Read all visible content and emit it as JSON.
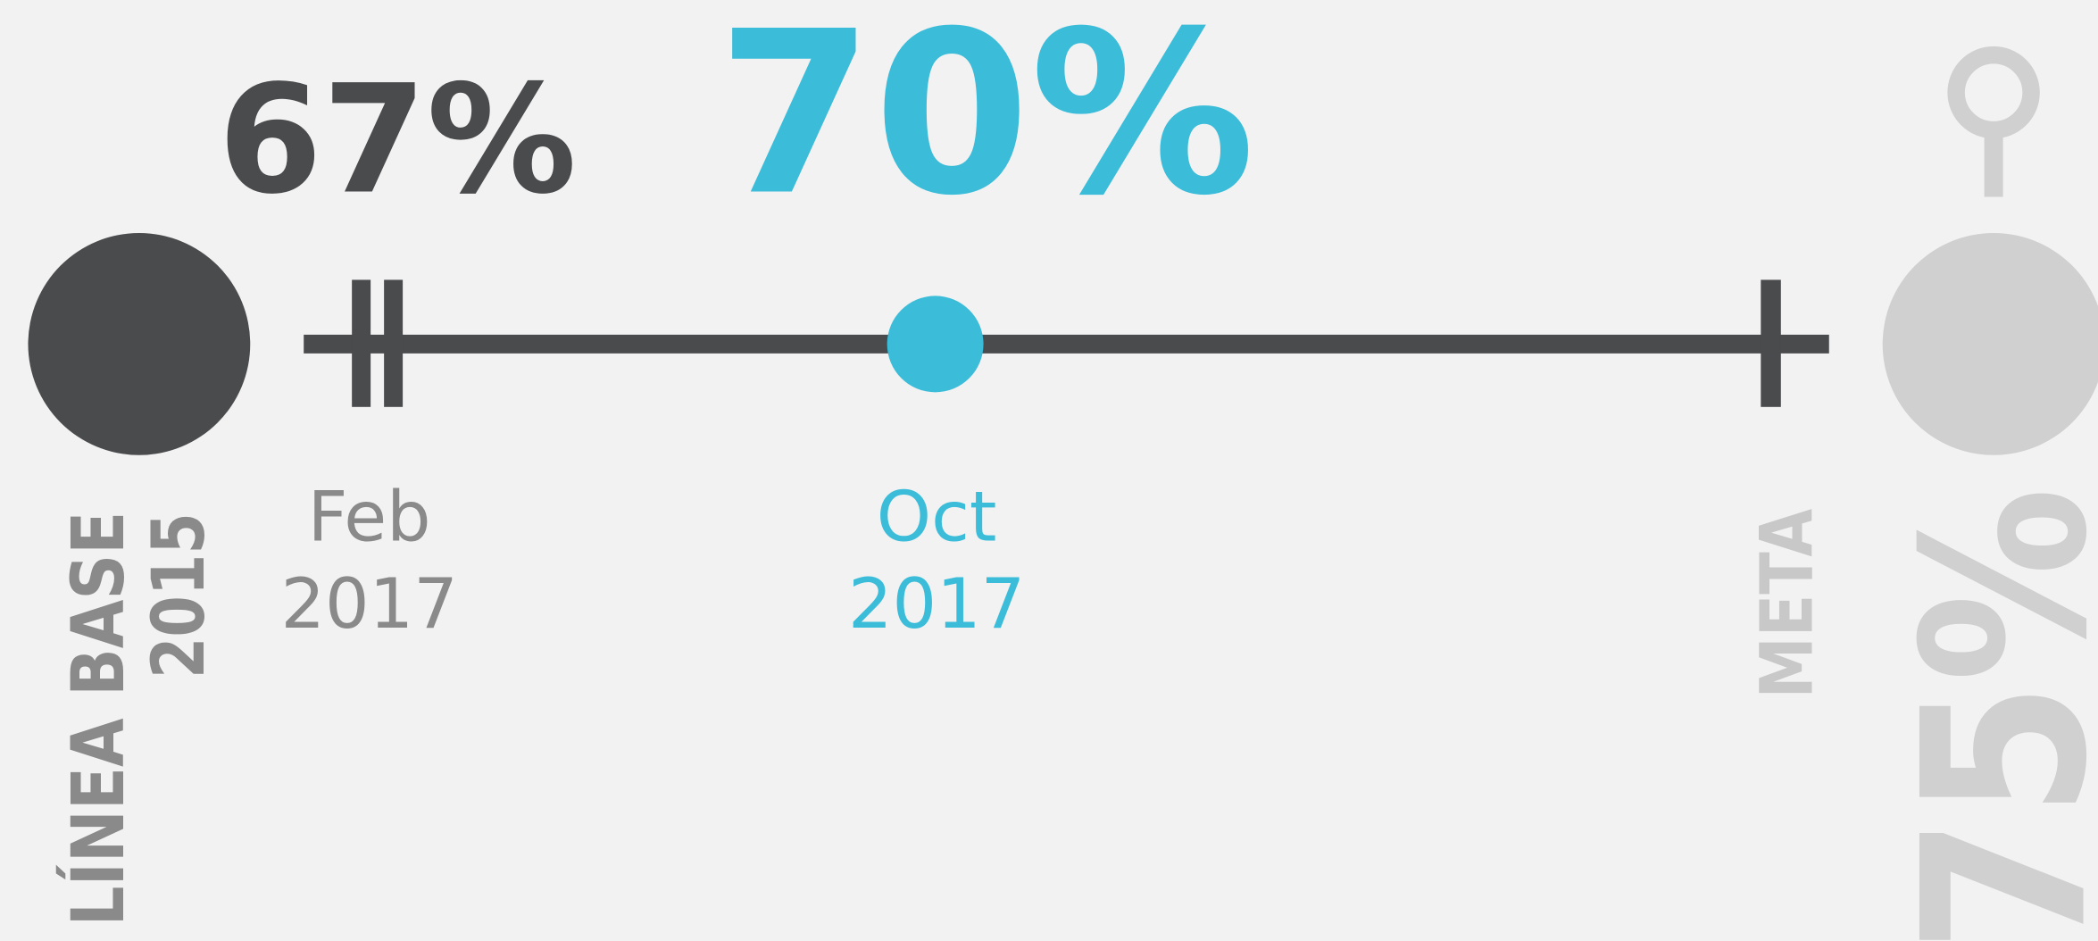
{
  "baseline": {
    "label": "LÍNEA BASE",
    "year": "2015"
  },
  "previous": {
    "value_label": "67%",
    "month": "Feb",
    "year": "2017"
  },
  "current": {
    "value_label": "70%",
    "month": "Oct",
    "year": "2017"
  },
  "goal": {
    "label": "META",
    "value_label": "75%"
  }
}
